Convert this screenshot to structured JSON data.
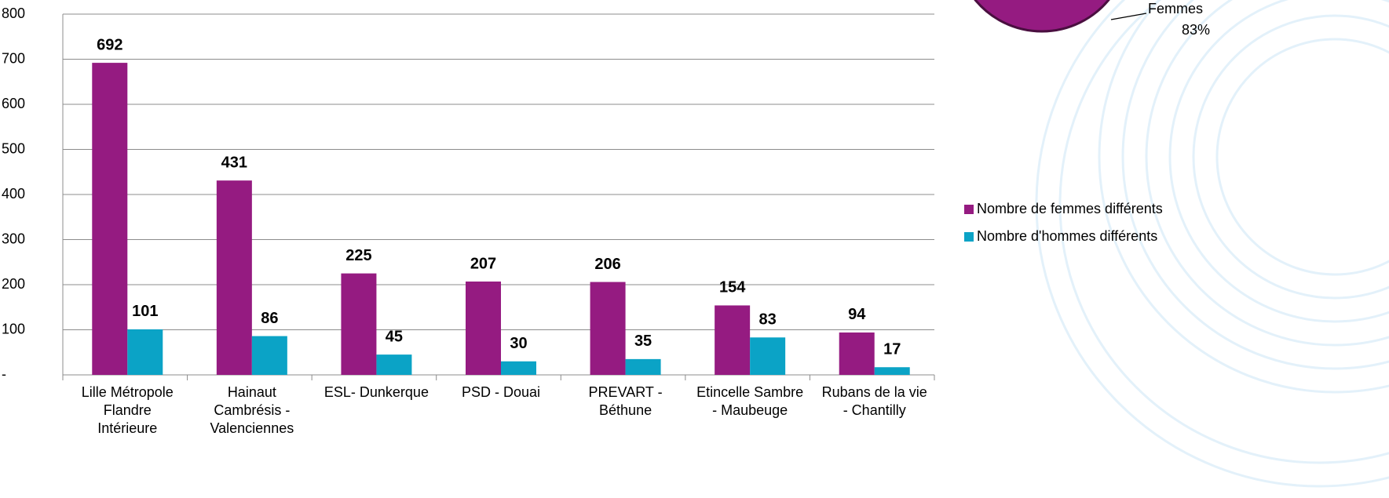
{
  "chart_data": [
    {
      "type": "bar",
      "categories": [
        "Lille Métropole Flandre Intérieure",
        "Hainaut Cambrésis - Valenciennes",
        "ESL- Dunkerque",
        "PSD - Douai",
        "PREVART - Béthune",
        "Etincelle Sambre - Maubeuge",
        "Rubans de la vie - Chantilly"
      ],
      "series": [
        {
          "name": "Nombre de femmes différents",
          "color": "#951b81",
          "values": [
            692,
            431,
            225,
            207,
            206,
            154,
            94
          ]
        },
        {
          "name": "Nombre d'hommes différents",
          "color": "#0ba3c6",
          "values": [
            101,
            86,
            45,
            30,
            35,
            83,
            17
          ]
        }
      ],
      "ylim": [
        0,
        800
      ],
      "yticks": [
        {
          "value": 0,
          "label": "-"
        },
        100,
        200,
        300,
        400,
        500,
        600,
        700,
        800
      ],
      "grid": true
    },
    {
      "type": "pie",
      "categories": [
        "Femmes"
      ],
      "values": [
        83
      ],
      "value_labels": [
        "83%"
      ],
      "colors": [
        "#951b81"
      ]
    }
  ]
}
